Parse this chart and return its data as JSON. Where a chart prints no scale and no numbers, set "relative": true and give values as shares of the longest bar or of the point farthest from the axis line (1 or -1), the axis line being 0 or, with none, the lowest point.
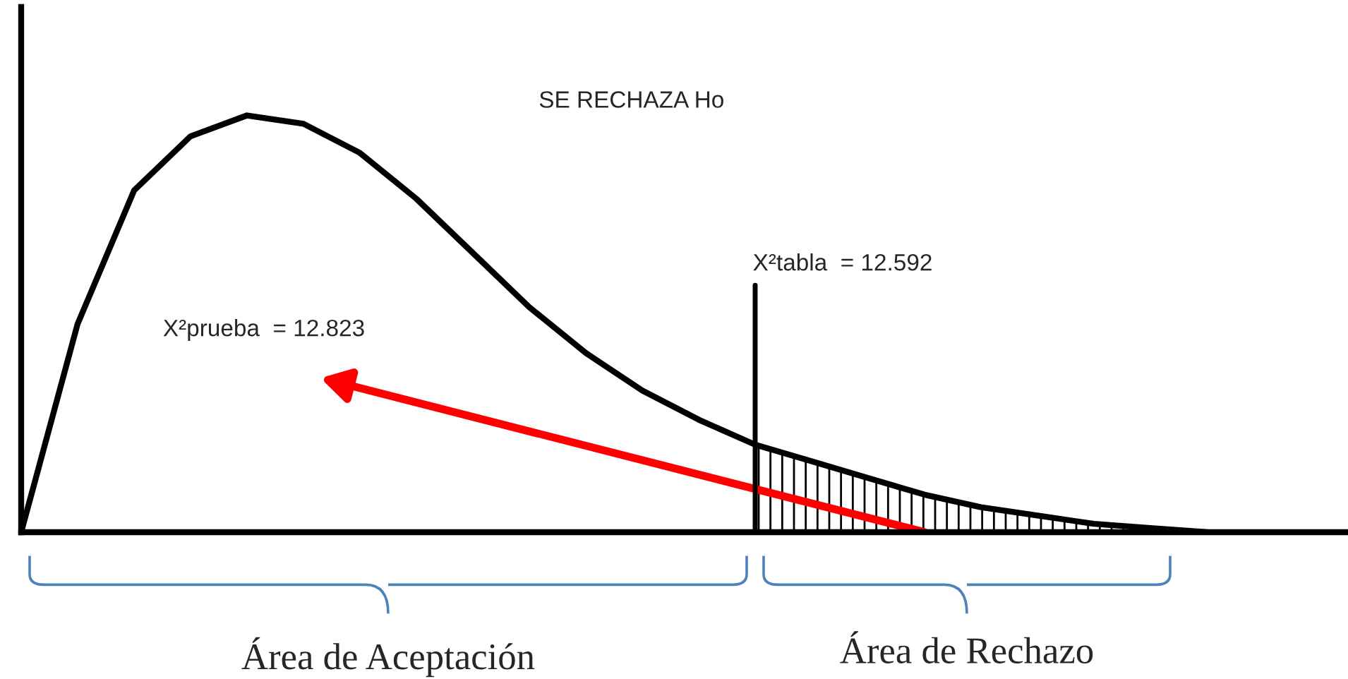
{
  "chart_data": {
    "type": "line",
    "relative": true,
    "marker": "none",
    "line_style": "solid",
    "categories": [
      null,
      null,
      null,
      null,
      null,
      null,
      null,
      null,
      null,
      null,
      null,
      null,
      null,
      null,
      null,
      null,
      null,
      null,
      null,
      null,
      null,
      null
    ],
    "series": [
      {
        "color": "#000000",
        "values": [
          0,
          0.5,
          0.82,
          0.95,
          1.0,
          0.98,
          0.91,
          0.8,
          0.67,
          0.54,
          0.43,
          0.34,
          0.27,
          0.21,
          0.17,
          0.13,
          0.09,
          0.06,
          0.04,
          0.02,
          0.01,
          0
        ]
      }
    ],
    "annotations": [
      "SE RECHAZA Ho",
      "X²tabla  = 12.592",
      "X²prueba  = 12.823",
      "Área de Aceptación",
      "Área de Rechazo"
    ]
  }
}
